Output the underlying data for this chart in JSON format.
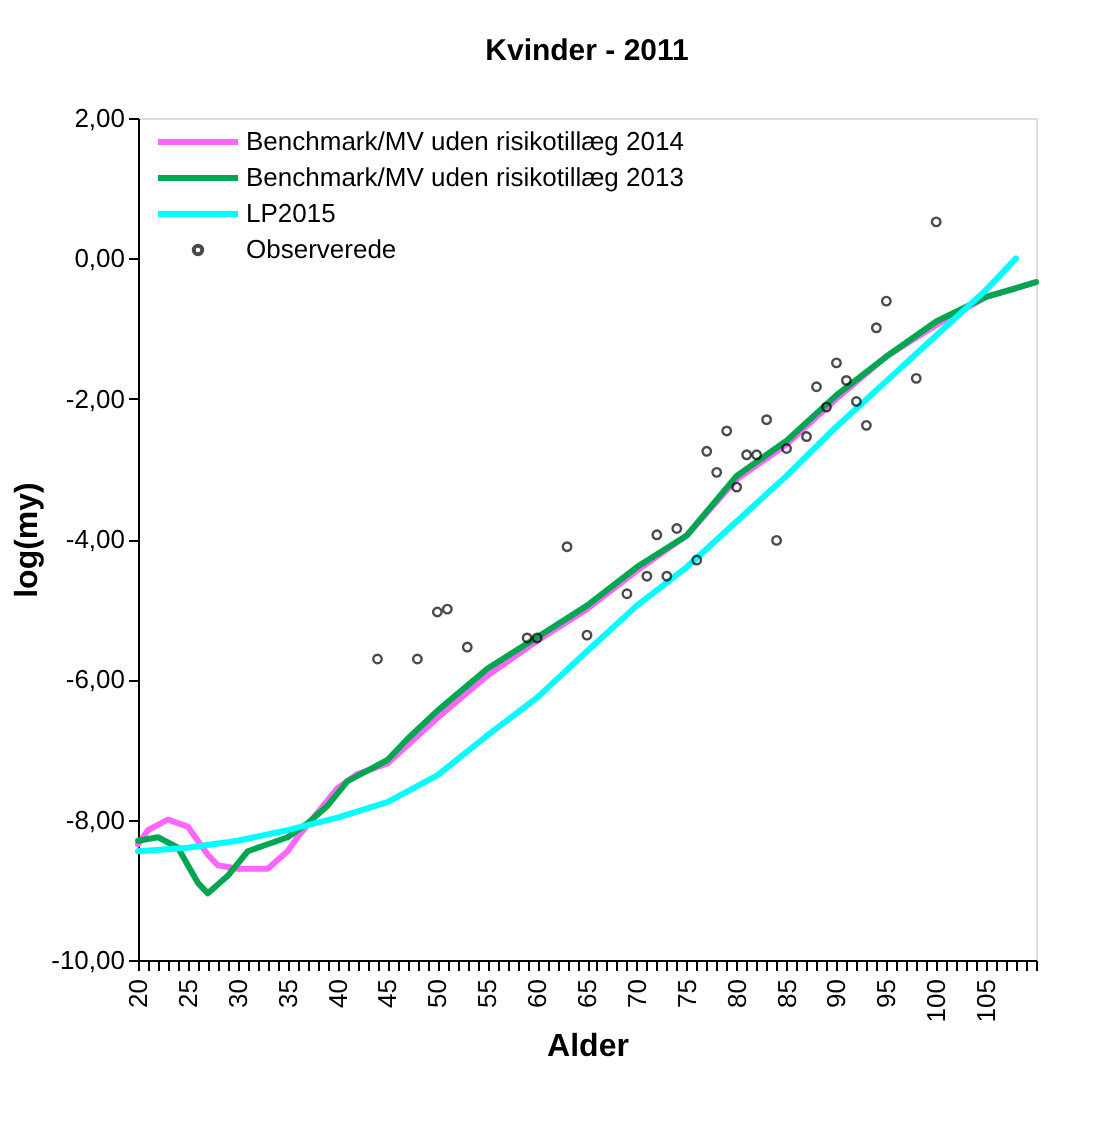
{
  "chart_data": {
    "type": "line",
    "title": "Kvinder - 2011",
    "xlabel": "Alder",
    "ylabel": "log(my)",
    "xlim": [
      20,
      110
    ],
    "xticks": [
      20,
      {
        "value": 21,
        "label": null
      },
      {
        "value": 22,
        "label": null
      },
      {
        "value": 23,
        "label": null
      },
      {
        "value": 24,
        "label": null
      },
      25,
      {
        "value": 26,
        "label": null
      },
      {
        "value": 27,
        "label": null
      },
      {
        "value": 28,
        "label": null
      },
      {
        "value": 29,
        "label": null
      },
      30,
      {
        "value": 31,
        "label": null
      },
      {
        "value": 32,
        "label": null
      },
      {
        "value": 33,
        "label": null
      },
      {
        "value": 34,
        "label": null
      },
      35,
      {
        "value": 36,
        "label": null
      },
      {
        "value": 37,
        "label": null
      },
      {
        "value": 38,
        "label": null
      },
      {
        "value": 39,
        "label": null
      },
      40,
      {
        "value": 41,
        "label": null
      },
      {
        "value": 42,
        "label": null
      },
      {
        "value": 43,
        "label": null
      },
      {
        "value": 44,
        "label": null
      },
      45,
      {
        "value": 46,
        "label": null
      },
      {
        "value": 47,
        "label": null
      },
      {
        "value": 48,
        "label": null
      },
      {
        "value": 49,
        "label": null
      },
      50,
      {
        "value": 51,
        "label": null
      },
      {
        "value": 52,
        "label": null
      },
      {
        "value": 53,
        "label": null
      },
      {
        "value": 54,
        "label": null
      },
      55,
      {
        "value": 56,
        "label": null
      },
      {
        "value": 57,
        "label": null
      },
      {
        "value": 58,
        "label": null
      },
      {
        "value": 59,
        "label": null
      },
      60,
      {
        "value": 61,
        "label": null
      },
      {
        "value": 62,
        "label": null
      },
      {
        "value": 63,
        "label": null
      },
      {
        "value": 64,
        "label": null
      },
      65,
      {
        "value": 66,
        "label": null
      },
      {
        "value": 67,
        "label": null
      },
      {
        "value": 68,
        "label": null
      },
      {
        "value": 69,
        "label": null
      },
      70,
      {
        "value": 71,
        "label": null
      },
      {
        "value": 72,
        "label": null
      },
      {
        "value": 73,
        "label": null
      },
      {
        "value": 74,
        "label": null
      },
      75,
      {
        "value": 76,
        "label": null
      },
      {
        "value": 77,
        "label": null
      },
      {
        "value": 78,
        "label": null
      },
      {
        "value": 79,
        "label": null
      },
      80,
      {
        "value": 81,
        "label": null
      },
      {
        "value": 82,
        "label": null
      },
      {
        "value": 83,
        "label": null
      },
      {
        "value": 84,
        "label": null
      },
      85,
      {
        "value": 86,
        "label": null
      },
      {
        "value": 87,
        "label": null
      },
      {
        "value": 88,
        "label": null
      },
      {
        "value": 89,
        "label": null
      },
      90,
      {
        "value": 91,
        "label": null
      },
      {
        "value": 92,
        "label": null
      },
      {
        "value": 93,
        "label": null
      },
      {
        "value": 94,
        "label": null
      },
      95,
      {
        "value": 96,
        "label": null
      },
      {
        "value": 97,
        "label": null
      },
      {
        "value": 98,
        "label": null
      },
      {
        "value": 99,
        "label": null
      },
      100,
      {
        "value": 101,
        "label": null
      },
      {
        "value": 102,
        "label": null
      },
      {
        "value": 103,
        "label": null
      },
      {
        "value": 104,
        "label": null
      },
      105,
      {
        "value": 106,
        "label": null
      },
      {
        "value": 107,
        "label": null
      },
      {
        "value": 108,
        "label": null
      },
      {
        "value": 109,
        "label": null
      },
      {
        "value": 110,
        "label": null
      }
    ],
    "ylim": [
      -10,
      2
    ],
    "yticks": [
      {
        "value": -10,
        "label": "-10,00"
      },
      {
        "value": -8,
        "label": "-8,00"
      },
      {
        "value": -6,
        "label": "-6,00"
      },
      {
        "value": -4,
        "label": "-4,00"
      },
      {
        "value": -2,
        "label": "-2,00"
      },
      {
        "value": 0,
        "label": "0,00"
      },
      {
        "value": 2,
        "label": "2,00"
      }
    ],
    "grid": false,
    "legend": "top left",
    "series": [
      {
        "name": "Benchmark/MV uden risikotillæg 2014",
        "color": "#ff66ff",
        "marker": "none",
        "x": [
          20,
          21,
          23,
          25,
          27,
          28,
          30,
          33,
          35,
          36,
          38,
          40,
          42,
          45,
          50,
          55,
          60,
          65,
          70,
          75,
          80,
          85,
          90,
          95,
          100,
          105,
          110
        ],
        "values": [
          -8.35,
          -8.15,
          -8.0,
          -8.1,
          -8.5,
          -8.65,
          -8.7,
          -8.7,
          -8.45,
          -8.25,
          -7.9,
          -7.55,
          -7.35,
          -7.2,
          -6.55,
          -5.95,
          -5.45,
          -5.0,
          -4.45,
          -3.95,
          -3.15,
          -2.65,
          -2.0,
          -1.4,
          -0.95,
          -0.55,
          -0.34
        ]
      },
      {
        "name": "Benchmark/MV uden risikotillæg 2013",
        "color": "#00a650",
        "marker": "none",
        "x": [
          20,
          22,
          24,
          26,
          27,
          29,
          31,
          33,
          35,
          37,
          39,
          41,
          43,
          45,
          47,
          50,
          55,
          60,
          65,
          70,
          75,
          80,
          85,
          90,
          95,
          100,
          105,
          110
        ],
        "values": [
          -8.3,
          -8.25,
          -8.4,
          -8.9,
          -9.05,
          -8.8,
          -8.45,
          -8.35,
          -8.25,
          -8.05,
          -7.8,
          -7.45,
          -7.3,
          -7.15,
          -6.85,
          -6.45,
          -5.85,
          -5.4,
          -4.95,
          -4.4,
          -3.95,
          -3.1,
          -2.6,
          -1.95,
          -1.4,
          -0.9,
          -0.55,
          -0.34
        ]
      },
      {
        "name": "LP2015",
        "color": "#00ffff",
        "marker": "none",
        "x": [
          20,
          25,
          30,
          35,
          40,
          45,
          50,
          55,
          60,
          65,
          70,
          75,
          80,
          85,
          90,
          95,
          100,
          105,
          108
        ],
        "values": [
          -8.45,
          -8.4,
          -8.3,
          -8.15,
          -7.97,
          -7.75,
          -7.37,
          -6.8,
          -6.26,
          -5.6,
          -4.95,
          -4.4,
          -3.75,
          -3.1,
          -2.4,
          -1.75,
          -1.1,
          -0.45,
          0.0
        ]
      },
      {
        "name": "Observerede",
        "color": "#000000",
        "type": "scatter",
        "marker": "circle",
        "x": [
          44,
          48,
          50,
          51,
          53,
          59,
          60,
          63,
          65,
          69,
          71,
          72,
          73,
          74,
          76,
          77,
          78,
          79,
          80,
          81,
          82,
          83,
          84,
          85,
          87,
          88,
          89,
          90,
          91,
          92,
          93,
          94,
          95,
          98,
          100
        ],
        "values": [
          -5.71,
          -5.71,
          -5.04,
          -5.0,
          -5.54,
          -5.41,
          -5.41,
          -4.11,
          -5.37,
          -4.78,
          -4.53,
          -3.94,
          -4.53,
          -3.85,
          -4.3,
          -2.75,
          -3.05,
          -2.46,
          -3.26,
          -2.8,
          -2.8,
          -2.3,
          -4.02,
          -2.71,
          -2.54,
          -1.83,
          -2.12,
          -1.49,
          -1.74,
          -2.04,
          -2.38,
          -0.99,
          -0.61,
          -1.71,
          0.52
        ]
      }
    ]
  }
}
